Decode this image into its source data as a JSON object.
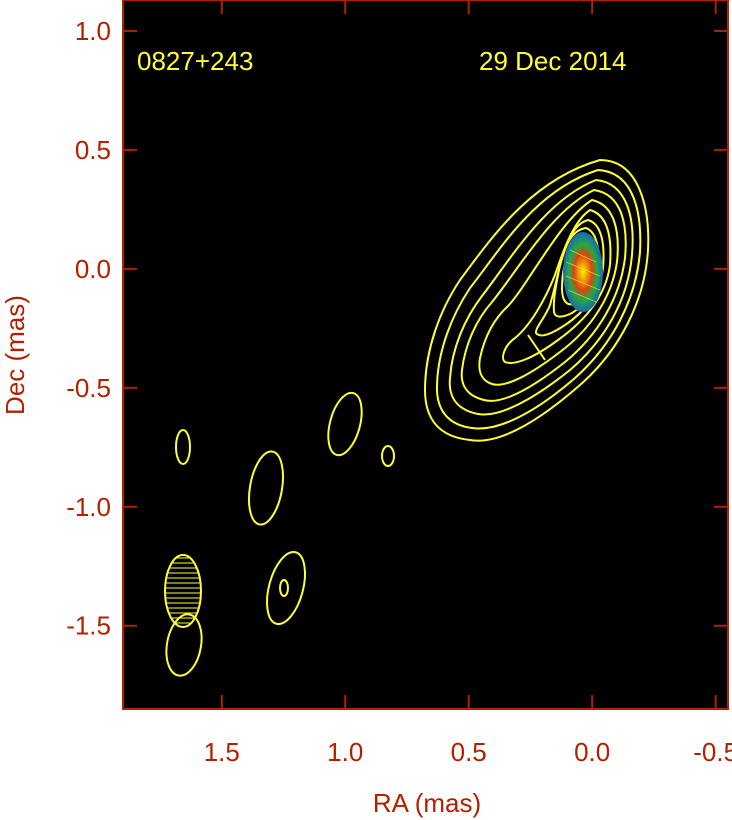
{
  "chart_data": {
    "type": "contour",
    "xlabel": "RA (mas)",
    "ylabel": "Dec (mas)",
    "xlim": [
      1.9,
      -0.55
    ],
    "ylim": [
      -1.85,
      1.13
    ],
    "x_reversed": true,
    "x_ticks": [
      1.5,
      1.0,
      0.5,
      0.0,
      -0.5
    ],
    "x_tick_labels": [
      "1.5",
      "1.0",
      "0.5",
      "0.0",
      "-0.5"
    ],
    "y_ticks": [
      1.0,
      0.5,
      0.0,
      -0.5,
      -1.0,
      -1.5
    ],
    "y_tick_labels": [
      "1.0",
      "0.5",
      "0.0",
      "-0.5",
      "-1.0",
      "-1.5"
    ],
    "background_color": "#000000",
    "contour_color": "#ffff33",
    "axis_color": "#b22000",
    "annotations": {
      "source": "0827+243",
      "date": "29 Dec 2014"
    },
    "core": {
      "ra": 0.0,
      "dec": 0.0,
      "colors": [
        "#1a66b3",
        "#22aa44",
        "#dd4411",
        "#ffee00"
      ]
    },
    "beam": {
      "ra": 1.7,
      "dec": -1.35,
      "major": 0.15,
      "minor": 0.075
    },
    "features": [
      {
        "name": "main-jet-contours",
        "ra": 0.05,
        "dec": -0.05,
        "levels": 9
      },
      {
        "name": "component-1",
        "ra": 1.05,
        "dec": -0.64
      },
      {
        "name": "component-2",
        "ra": 0.83,
        "dec": -0.78
      },
      {
        "name": "component-3",
        "ra": 1.71,
        "dec": -0.74
      },
      {
        "name": "component-4",
        "ra": 1.36,
        "dec": -0.91
      },
      {
        "name": "component-5",
        "ra": 1.29,
        "dec": -1.33
      },
      {
        "name": "component-6",
        "ra": 1.72,
        "dec": -1.58
      }
    ]
  }
}
